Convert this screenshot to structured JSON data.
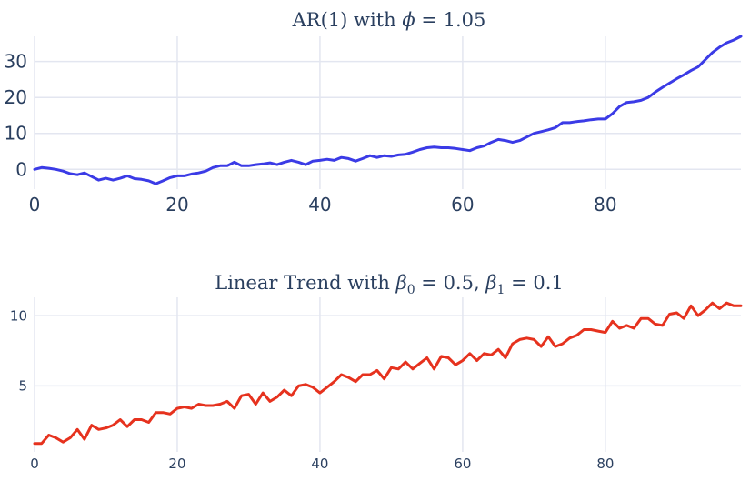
{
  "chart_data": [
    {
      "type": "line",
      "title": "AR(1) with ϕ = 1.05",
      "title_parts": {
        "text": "AR(1) with ",
        "symbol": "ϕ",
        "rest": " = 1.05"
      },
      "xlabel": "",
      "ylabel": "",
      "xlim": [
        0,
        99
      ],
      "ylim": [
        -5.5,
        37
      ],
      "x_ticks": [
        0,
        20,
        40,
        60,
        80
      ],
      "y_ticks": [
        0,
        10,
        20,
        30
      ],
      "grid": true,
      "color": "#3b3be6",
      "series": [
        {
          "x": [
            0,
            1,
            2,
            3,
            4,
            5,
            6,
            7,
            8,
            9,
            10,
            11,
            12,
            13,
            14,
            15,
            16,
            17,
            18,
            19,
            20,
            21,
            22,
            23,
            24,
            25,
            26,
            27,
            28,
            29,
            30,
            31,
            32,
            33,
            34,
            35,
            36,
            37,
            38,
            39,
            40,
            41,
            42,
            43,
            44,
            45,
            46,
            47,
            48,
            49,
            50,
            51,
            52,
            53,
            54,
            55,
            56,
            57,
            58,
            59,
            60,
            61,
            62,
            63,
            64,
            65,
            66,
            67,
            68,
            69,
            70,
            71,
            72,
            73,
            74,
            75,
            76,
            77,
            78,
            79,
            80,
            81,
            82,
            83,
            84,
            85,
            86,
            87,
            88,
            89,
            90,
            91,
            92,
            93,
            94,
            95,
            96,
            97,
            98,
            99
          ],
          "values": [
            0,
            0.5,
            0.3,
            0,
            -0.5,
            -1.2,
            -1.5,
            -1.0,
            -2.0,
            -3.0,
            -2.5,
            -3.0,
            -2.5,
            -1.8,
            -2.6,
            -2.8,
            -3.2,
            -4.0,
            -3.2,
            -2.3,
            -1.8,
            -1.8,
            -1.3,
            -1.0,
            -0.5,
            0.5,
            1.0,
            1.0,
            2.0,
            1.0,
            1.0,
            1.3,
            1.5,
            1.8,
            1.3,
            2.0,
            2.5,
            2.0,
            1.3,
            2.3,
            2.5,
            2.8,
            2.5,
            3.3,
            3.0,
            2.3,
            3.0,
            3.8,
            3.3,
            3.8,
            3.6,
            4.0,
            4.2,
            4.8,
            5.5,
            6.0,
            6.2,
            6.0,
            6.0,
            5.8,
            5.5,
            5.2,
            6.0,
            6.5,
            7.5,
            8.3,
            8.0,
            7.5,
            8.0,
            9.0,
            10.0,
            10.5,
            11.0,
            11.6,
            13.0,
            13.0,
            13.3,
            13.5,
            13.8,
            14.0,
            14.0,
            15.5,
            17.5,
            18.6,
            18.8,
            19.2,
            20.0,
            21.5,
            22.8,
            24.0,
            25.2,
            26.3,
            27.5,
            28.5,
            30.5,
            32.5,
            34.0,
            35.2,
            36.0,
            37.0
          ]
        }
      ]
    },
    {
      "type": "line",
      "title": "Linear Trend with β₀ = 0.5, β₁ = 0.1",
      "title_parts": {
        "text": "Linear Trend with ",
        "b0": "β",
        "b0_sub": "0",
        "mid": " = 0.5, ",
        "b1": "β",
        "b1_sub": "1",
        "rest": " = 0.1"
      },
      "xlabel": "",
      "ylabel": "",
      "xlim": [
        0,
        99
      ],
      "ylim": [
        0.3,
        11.3
      ],
      "x_ticks": [
        0,
        20,
        40,
        60,
        80
      ],
      "y_ticks": [
        5,
        10
      ],
      "grid": true,
      "color": "#e6321e",
      "series": [
        {
          "x": [
            0,
            1,
            2,
            3,
            4,
            5,
            6,
            7,
            8,
            9,
            10,
            11,
            12,
            13,
            14,
            15,
            16,
            17,
            18,
            19,
            20,
            21,
            22,
            23,
            24,
            25,
            26,
            27,
            28,
            29,
            30,
            31,
            32,
            33,
            34,
            35,
            36,
            37,
            38,
            39,
            40,
            41,
            42,
            43,
            44,
            45,
            46,
            47,
            48,
            49,
            50,
            51,
            52,
            53,
            54,
            55,
            56,
            57,
            58,
            59,
            60,
            61,
            62,
            63,
            64,
            65,
            66,
            67,
            68,
            69,
            70,
            71,
            72,
            73,
            74,
            75,
            76,
            77,
            78,
            79,
            80,
            81,
            82,
            83,
            84,
            85,
            86,
            87,
            88,
            89,
            90,
            91,
            92,
            93,
            94,
            95,
            96,
            97,
            98,
            99
          ],
          "values": [
            0.9,
            0.9,
            1.5,
            1.3,
            1.0,
            1.3,
            1.9,
            1.2,
            2.2,
            1.9,
            2.0,
            2.2,
            2.6,
            2.1,
            2.6,
            2.6,
            2.4,
            3.1,
            3.1,
            3.0,
            3.4,
            3.5,
            3.4,
            3.7,
            3.6,
            3.6,
            3.7,
            3.9,
            3.4,
            4.3,
            4.4,
            3.7,
            4.5,
            3.9,
            4.2,
            4.7,
            4.3,
            5.0,
            5.1,
            4.9,
            4.5,
            4.9,
            5.3,
            5.8,
            5.6,
            5.3,
            5.8,
            5.8,
            6.1,
            5.5,
            6.3,
            6.2,
            6.7,
            6.2,
            6.6,
            7.0,
            6.2,
            7.1,
            7.0,
            6.5,
            6.8,
            7.3,
            6.8,
            7.3,
            7.2,
            7.6,
            7.0,
            8.0,
            8.3,
            8.4,
            8.3,
            7.8,
            8.5,
            7.8,
            8.0,
            8.4,
            8.6,
            9.0,
            9.0,
            8.9,
            8.8,
            9.6,
            9.1,
            9.3,
            9.1,
            9.8,
            9.8,
            9.4,
            9.3,
            10.1,
            10.2,
            9.8,
            10.7,
            10.0,
            10.4,
            10.9,
            10.5,
            10.9,
            10.7,
            10.7
          ]
        }
      ]
    }
  ]
}
